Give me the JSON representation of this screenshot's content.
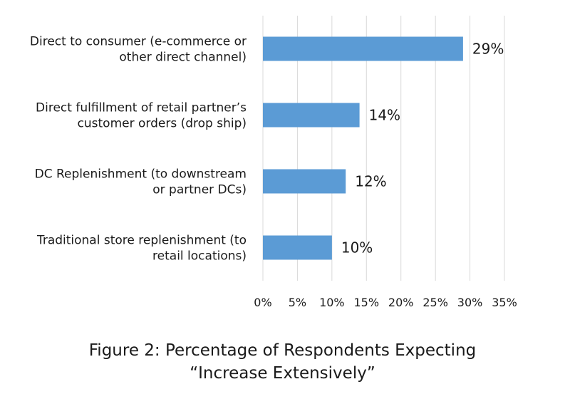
{
  "chart_data": {
    "type": "bar",
    "orientation": "horizontal",
    "categories": [
      [
        "Direct to consumer (e-commerce or",
        "other direct channel)"
      ],
      [
        "Direct fulfillment of retail partner’s",
        "customer orders (drop ship)"
      ],
      [
        "DC Replenishment (to downstream",
        "or partner DCs)"
      ],
      [
        "Traditional store replenishment (to",
        "retail locations)"
      ]
    ],
    "values": [
      29,
      14,
      12,
      10
    ],
    "data_labels": [
      "29%",
      "14%",
      "12%",
      "10%"
    ],
    "x_ticks": [
      "0%",
      "5%",
      "10%",
      "15%",
      "20%",
      "25%",
      "30%",
      "35%"
    ],
    "xlim": [
      0,
      35
    ],
    "grid": "vertical",
    "bar_color": "#5b9bd5",
    "grid_color": "#d9d9d9"
  },
  "caption": {
    "line1": "Figure 2: Percentage of Respondents Expecting",
    "line2": "“Increase Extensively”"
  }
}
